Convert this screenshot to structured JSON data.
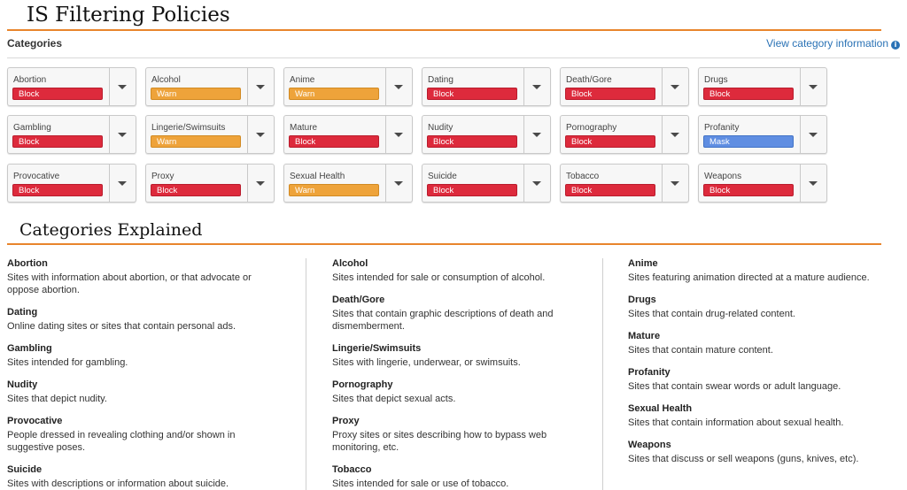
{
  "page": {
    "title": "IS Filtering Policies",
    "categories_label": "Categories",
    "view_info_label": "View category information",
    "info_icon_glyph": "i",
    "explained_title": "Categories Explained"
  },
  "colors": {
    "accent_rule": "#e8852c",
    "block": "#dd2a3c",
    "warn": "#eea33a",
    "mask": "#5f8ee2",
    "link": "#2a72b5"
  },
  "categories": [
    {
      "name": "Abortion",
      "action": "Block"
    },
    {
      "name": "Alcohol",
      "action": "Warn"
    },
    {
      "name": "Anime",
      "action": "Warn"
    },
    {
      "name": "Dating",
      "action": "Block"
    },
    {
      "name": "Death/Gore",
      "action": "Block"
    },
    {
      "name": "Drugs",
      "action": "Block"
    },
    {
      "name": "Gambling",
      "action": "Block"
    },
    {
      "name": "Lingerie/Swimsuits",
      "action": "Warn"
    },
    {
      "name": "Mature",
      "action": "Block"
    },
    {
      "name": "Nudity",
      "action": "Block"
    },
    {
      "name": "Pornography",
      "action": "Block"
    },
    {
      "name": "Profanity",
      "action": "Mask"
    },
    {
      "name": "Provocative",
      "action": "Block"
    },
    {
      "name": "Proxy",
      "action": "Block"
    },
    {
      "name": "Sexual Health",
      "action": "Warn"
    },
    {
      "name": "Suicide",
      "action": "Block"
    },
    {
      "name": "Tobacco",
      "action": "Block"
    },
    {
      "name": "Weapons",
      "action": "Block"
    }
  ],
  "explained": {
    "col1": [
      {
        "name": "Abortion",
        "desc": "Sites with information about abortion, or that advocate or oppose abortion."
      },
      {
        "name": "Dating",
        "desc": "Online dating sites or sites that contain personal ads."
      },
      {
        "name": "Gambling",
        "desc": "Sites intended for gambling."
      },
      {
        "name": "Nudity",
        "desc": "Sites that depict nudity."
      },
      {
        "name": "Provocative",
        "desc": "People dressed in revealing clothing and/or shown in suggestive poses."
      },
      {
        "name": "Suicide",
        "desc": "Sites with descriptions or information about suicide."
      }
    ],
    "col2": [
      {
        "name": "Alcohol",
        "desc": "Sites intended for sale or consumption of alcohol."
      },
      {
        "name": "Death/Gore",
        "desc": "Sites that contain graphic descriptions of death and dismemberment."
      },
      {
        "name": "Lingerie/Swimsuits",
        "desc": "Sites with lingerie, underwear, or swimsuits."
      },
      {
        "name": "Pornography",
        "desc": "Sites that depict sexual acts."
      },
      {
        "name": "Proxy",
        "desc": "Proxy sites or sites describing how to bypass web monitoring, etc."
      },
      {
        "name": "Tobacco",
        "desc": "Sites intended for sale or use of tobacco."
      }
    ],
    "col3": [
      {
        "name": "Anime",
        "desc": "Sites featuring animation directed at a mature audience."
      },
      {
        "name": "Drugs",
        "desc": "Sites that contain drug-related content."
      },
      {
        "name": "Mature",
        "desc": "Sites that contain mature content."
      },
      {
        "name": "Profanity",
        "desc": "Sites that contain swear words or adult language."
      },
      {
        "name": "Sexual Health",
        "desc": "Sites that contain information about sexual health."
      },
      {
        "name": "Weapons",
        "desc": "Sites that discuss or sell weapons (guns, knives, etc)."
      }
    ]
  }
}
